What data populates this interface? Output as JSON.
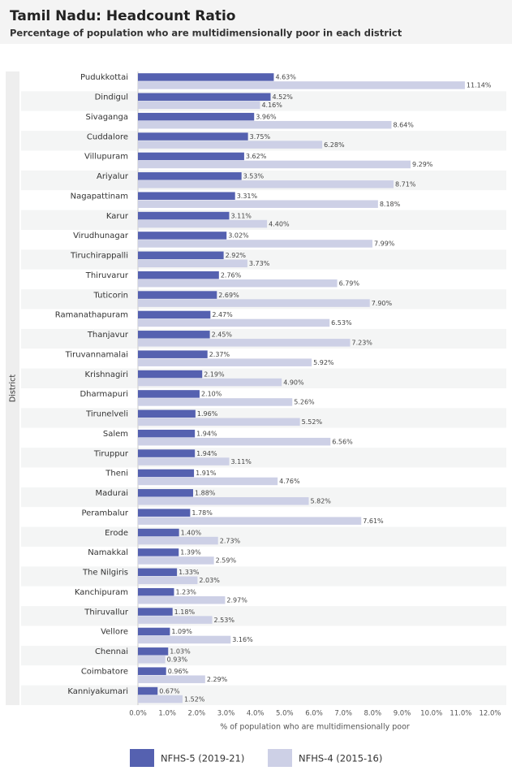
{
  "chart_data": {
    "type": "bar",
    "orientation": "horizontal",
    "title": "Tamil Nadu: Headcount Ratio",
    "subtitle": "Percentage of population who are multidimensionally poor in each district",
    "y_label": "District",
    "x_label": "% of population who are multidimensionally poor",
    "categories": [
      "Pudukkottai",
      "Dindigul",
      "Sivaganga",
      "Cuddalore",
      "Villupuram",
      "Ariyalur",
      "Nagapattinam",
      "Karur",
      "Virudhunagar",
      "Tiruchirappalli",
      "Thiruvarur",
      "Tuticorin",
      "Ramanathapuram",
      "Thanjavur",
      "Tiruvannamalai",
      "Krishnagiri",
      "Dharmapuri",
      "Tirunelveli",
      "Salem",
      "Tiruppur",
      "Theni",
      "Madurai",
      "Perambalur",
      "Erode",
      "Namakkal",
      "The Nilgiris",
      "Kanchipuram",
      "Thiruvallur",
      "Vellore",
      "Chennai",
      "Coimbatore",
      "Kanniyakumari"
    ],
    "series": [
      {
        "name": "NFHS-5 (2019-21)",
        "color": "#5561b0",
        "values": [
          4.63,
          4.52,
          3.96,
          3.75,
          3.62,
          3.53,
          3.31,
          3.11,
          3.02,
          2.92,
          2.76,
          2.69,
          2.47,
          2.45,
          2.37,
          2.19,
          2.1,
          1.96,
          1.94,
          1.94,
          1.91,
          1.88,
          1.78,
          1.4,
          1.39,
          1.33,
          1.23,
          1.18,
          1.09,
          1.03,
          0.96,
          0.67
        ],
        "value_labels": [
          "4.63%",
          "4.52%",
          "3.96%",
          "3.75%",
          "3.62%",
          "3.53%",
          "3.31%",
          "3.11%",
          "3.02%",
          "2.92%",
          "2.76%",
          "2.69%",
          "2.47%",
          "2.45%",
          "2.37%",
          "2.19%",
          "2.10%",
          "1.96%",
          "1.94%",
          "1.94%",
          "1.91%",
          "1.88%",
          "1.78%",
          "1.40%",
          "1.39%",
          "1.33%",
          "1.23%",
          "1.18%",
          "1.09%",
          "1.03%",
          "0.96%",
          "0.67%"
        ]
      },
      {
        "name": "NFHS-4 (2015-16)",
        "color": "#cdd0e6",
        "values": [
          11.14,
          4.16,
          8.64,
          6.28,
          9.29,
          8.71,
          8.18,
          4.4,
          7.99,
          3.73,
          6.79,
          7.9,
          6.53,
          7.23,
          5.92,
          4.9,
          5.26,
          5.52,
          6.56,
          3.11,
          4.76,
          5.82,
          7.61,
          2.73,
          2.59,
          2.03,
          2.97,
          2.53,
          3.16,
          0.93,
          2.29,
          1.52
        ],
        "value_labels": [
          "11.14%",
          "4.16%",
          "8.64%",
          "6.28%",
          "9.29%",
          "8.71%",
          "8.18%",
          "4.40%",
          "7.99%",
          "3.73%",
          "6.79%",
          "7.90%",
          "6.53%",
          "7.23%",
          "5.92%",
          "4.90%",
          "5.26%",
          "5.52%",
          "6.56%",
          "3.11%",
          "4.76%",
          "5.82%",
          "7.61%",
          "2.73%",
          "2.59%",
          "2.03%",
          "2.97%",
          "2.53%",
          "3.16%",
          "0.93%",
          "2.29%",
          "1.52%"
        ]
      }
    ],
    "xlim": [
      0,
      12
    ],
    "xticks": [
      {
        "value": 0,
        "label": "0.0%"
      },
      {
        "value": 1,
        "label": "1.0%"
      },
      {
        "value": 2,
        "label": "2.0%"
      },
      {
        "value": 3,
        "label": "3.0%"
      },
      {
        "value": 4,
        "label": "4.0%"
      },
      {
        "value": 5,
        "label": "5.0%"
      },
      {
        "value": 6,
        "label": "6.0%"
      },
      {
        "value": 7,
        "label": "7.0%"
      },
      {
        "value": 8,
        "label": "8.0%"
      },
      {
        "value": 9,
        "label": "9.0%"
      },
      {
        "value": 10,
        "label": "10.0%"
      },
      {
        "value": 11,
        "label": "11.0%"
      },
      {
        "value": 12,
        "label": "12.0%"
      }
    ],
    "legend": "bottom"
  }
}
